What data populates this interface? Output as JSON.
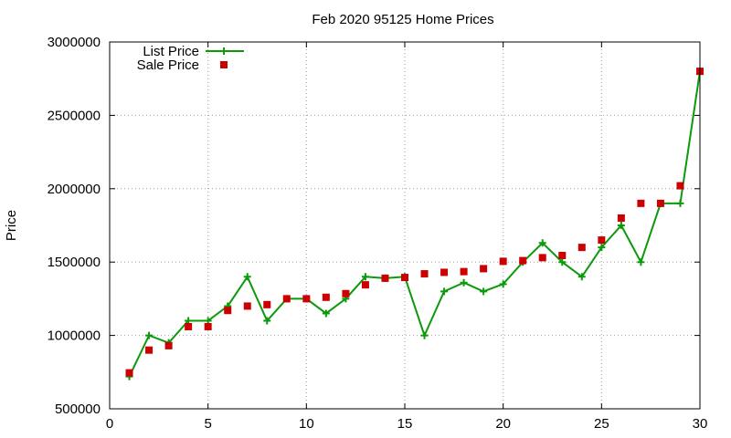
{
  "chart_data": {
    "type": "line",
    "title": "Feb 2020 95125 Home Prices",
    "xlabel": "",
    "ylabel": "Price",
    "xlim": [
      0,
      30
    ],
    "ylim": [
      500000,
      3000000
    ],
    "xticks": [
      0,
      5,
      10,
      15,
      20,
      25,
      30
    ],
    "yticks": [
      500000,
      1000000,
      1500000,
      2000000,
      2500000,
      3000000
    ],
    "grid": true,
    "legend": "top-left",
    "x": [
      1,
      2,
      3,
      4,
      5,
      6,
      7,
      8,
      9,
      10,
      11,
      12,
      13,
      14,
      15,
      16,
      17,
      18,
      19,
      20,
      21,
      22,
      23,
      24,
      25,
      26,
      27,
      28,
      29,
      30
    ],
    "series": [
      {
        "name": "List Price",
        "style": "line-with-plus-markers",
        "color": "#0a9a0a",
        "values": [
          720000,
          1000000,
          950000,
          1100000,
          1100000,
          1200000,
          1400000,
          1100000,
          1250000,
          1250000,
          1150000,
          1250000,
          1400000,
          1390000,
          1400000,
          1000000,
          1300000,
          1360000,
          1300000,
          1350000,
          1500000,
          1630000,
          1500000,
          1400000,
          1600000,
          1750000,
          1500000,
          1900000,
          1900000,
          2800000
        ]
      },
      {
        "name": "Sale Price",
        "style": "square-markers",
        "color": "#cc0000",
        "values": [
          745000,
          900000,
          930000,
          1060000,
          1060000,
          1170000,
          1200000,
          1210000,
          1250000,
          1250000,
          1260000,
          1285000,
          1345000,
          1390000,
          1395000,
          1420000,
          1430000,
          1435000,
          1455000,
          1505000,
          1510000,
          1530000,
          1545000,
          1600000,
          1650000,
          1800000,
          1900000,
          1900000,
          2020000,
          2800000
        ]
      }
    ]
  }
}
